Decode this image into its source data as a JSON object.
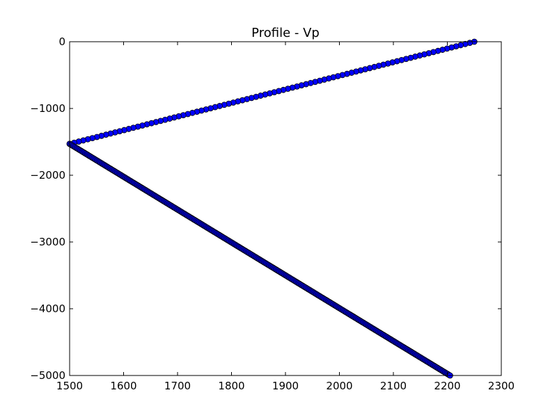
{
  "chart_data": {
    "type": "scatter",
    "title": "Profile - Vp",
    "xlabel": "",
    "ylabel": "",
    "xlim": [
      1500,
      2300
    ],
    "ylim": [
      -5000,
      0
    ],
    "xticks": [
      1500,
      1600,
      1700,
      1800,
      1900,
      2000,
      2100,
      2200,
      2300
    ],
    "yticks": [
      0,
      -1000,
      -2000,
      -3000,
      -4000,
      -5000
    ],
    "xtick_labels": [
      "1500",
      "1600",
      "1700",
      "1800",
      "1900",
      "2000",
      "2100",
      "2200",
      "2300"
    ],
    "ytick_labels": [
      "0",
      "−1000",
      "−2000",
      "−3000",
      "−4000",
      "−5000"
    ],
    "grid": false,
    "legend": "none",
    "marker_color": "#0000ff",
    "marker": "circle",
    "series": [
      {
        "segments": [
          {
            "x": [
              2250,
              1500
            ],
            "y": [
              0,
              -1530
            ],
            "count": 90
          },
          {
            "x": [
              1500,
              2205
            ],
            "y": [
              -1530,
              -5000
            ],
            "count": 320
          }
        ]
      }
    ]
  }
}
